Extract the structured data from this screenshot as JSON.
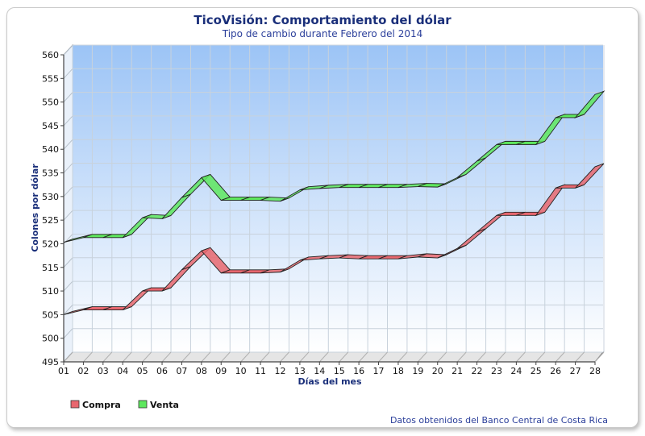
{
  "chart_data": {
    "type": "line",
    "title": "TicoVisión: Comportamiento del dólar",
    "subtitle": "Tipo de cambio durante Febrero del 2014",
    "xlabel": "Días del mes",
    "ylabel": "Colones por dólar",
    "ylim": [
      495,
      560
    ],
    "yticks": [
      "495",
      "500",
      "505",
      "510",
      "515",
      "520",
      "525",
      "530",
      "535",
      "540",
      "545",
      "550",
      "555",
      "560"
    ],
    "categories": [
      "01",
      "02",
      "03",
      "04",
      "05",
      "06",
      "07",
      "08",
      "09",
      "10",
      "11",
      "12",
      "13",
      "14",
      "15",
      "16",
      "17",
      "18",
      "19",
      "20",
      "21",
      "22",
      "23",
      "24",
      "25",
      "26",
      "27",
      "28"
    ],
    "grid": true,
    "legend_position": "bottom-left",
    "series": [
      {
        "name": "Compra",
        "color": "#e8676f",
        "values": [
          505,
          506,
          506,
          506,
          510,
          510,
          514.5,
          518.5,
          513.8,
          513.8,
          513.8,
          514,
          516.5,
          516.8,
          517,
          516.8,
          516.8,
          516.8,
          517.2,
          517,
          519,
          522.5,
          526,
          526,
          526,
          531.8,
          531.8,
          536.3
        ]
      },
      {
        "name": "Venta",
        "color": "#5ee85e",
        "values": [
          520.3,
          521.3,
          521.3,
          521.3,
          525.5,
          525.3,
          529.8,
          534,
          529.2,
          529.2,
          529.2,
          529,
          531.4,
          531.7,
          531.9,
          531.9,
          531.9,
          531.9,
          532.1,
          532,
          534,
          537.5,
          541,
          541,
          541,
          546.7,
          546.7,
          551.6
        ]
      }
    ]
  },
  "source_note": "Datos obtenidos del Banco Central de Costa Rica"
}
